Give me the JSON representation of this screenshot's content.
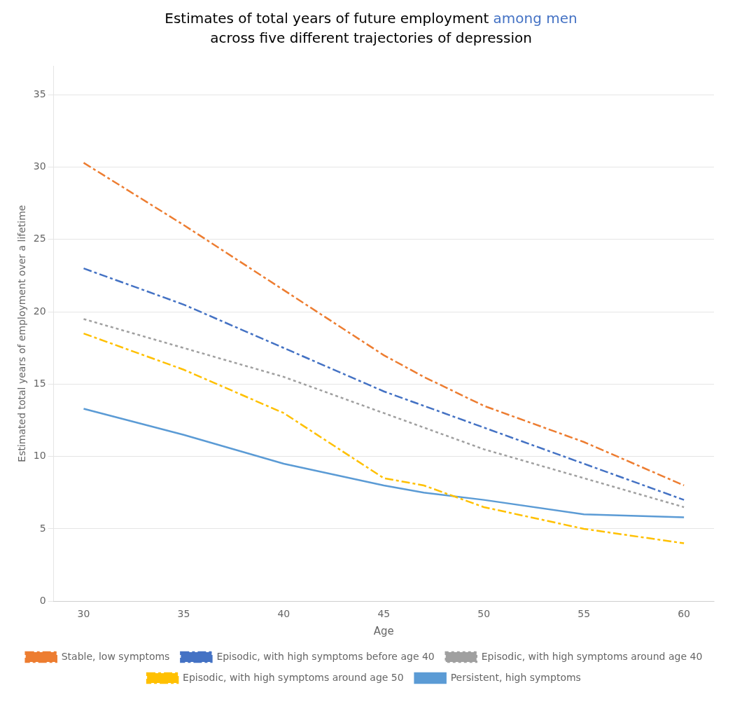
{
  "chart_data": {
    "type": "line",
    "title": [
      [
        {
          "text": "Estimates of total years of future employment ",
          "color": "#000000"
        },
        {
          "text": "among men",
          "color": "#4472C4"
        }
      ],
      [
        {
          "text": "across five different trajectories of depression",
          "color": "#000000"
        }
      ]
    ],
    "x_label": "Age",
    "y_label": "Estimated total years of employment over a lifetime",
    "x": [
      30,
      35,
      40,
      45,
      47,
      50,
      55,
      60
    ],
    "series": [
      {
        "name": "Stable, low symptoms",
        "color": "#ED7D31",
        "line_style": "dashdot",
        "values": [
          30.3,
          26.0,
          21.5,
          17.0,
          15.5,
          13.5,
          11.0,
          8.0
        ]
      },
      {
        "name": "Episodic, with high symptoms before age 40",
        "color": "#4472C4",
        "line_style": "dashdot",
        "values": [
          23.0,
          20.5,
          17.5,
          14.5,
          13.5,
          12.0,
          9.5,
          7.0
        ]
      },
      {
        "name": "Episodic, with high symptoms around age 40",
        "color": "#A0A0A0",
        "line_style": "dotted",
        "values": [
          19.5,
          17.5,
          15.5,
          13.0,
          12.0,
          10.5,
          8.5,
          6.5
        ]
      },
      {
        "name": "Episodic, with high symptoms around age 50",
        "color": "#FFC000",
        "line_style": "dashdot",
        "values": [
          18.5,
          16.0,
          13.0,
          8.5,
          8.0,
          6.5,
          5.0,
          4.0
        ]
      },
      {
        "name": "Persistent, high symptoms",
        "color": "#5B9BD5",
        "line_style": "solid",
        "values": [
          13.3,
          11.5,
          9.5,
          8.0,
          7.5,
          7.0,
          6.0,
          5.8
        ]
      }
    ],
    "xlim": [
      28.5,
      61.5
    ],
    "xticks": [
      30,
      35,
      40,
      45,
      50,
      55,
      60
    ],
    "ylim": [
      0,
      37
    ],
    "yticks": [
      0,
      5,
      10,
      15,
      20,
      25,
      30,
      35
    ],
    "grid": "y",
    "legend": "bottom"
  }
}
